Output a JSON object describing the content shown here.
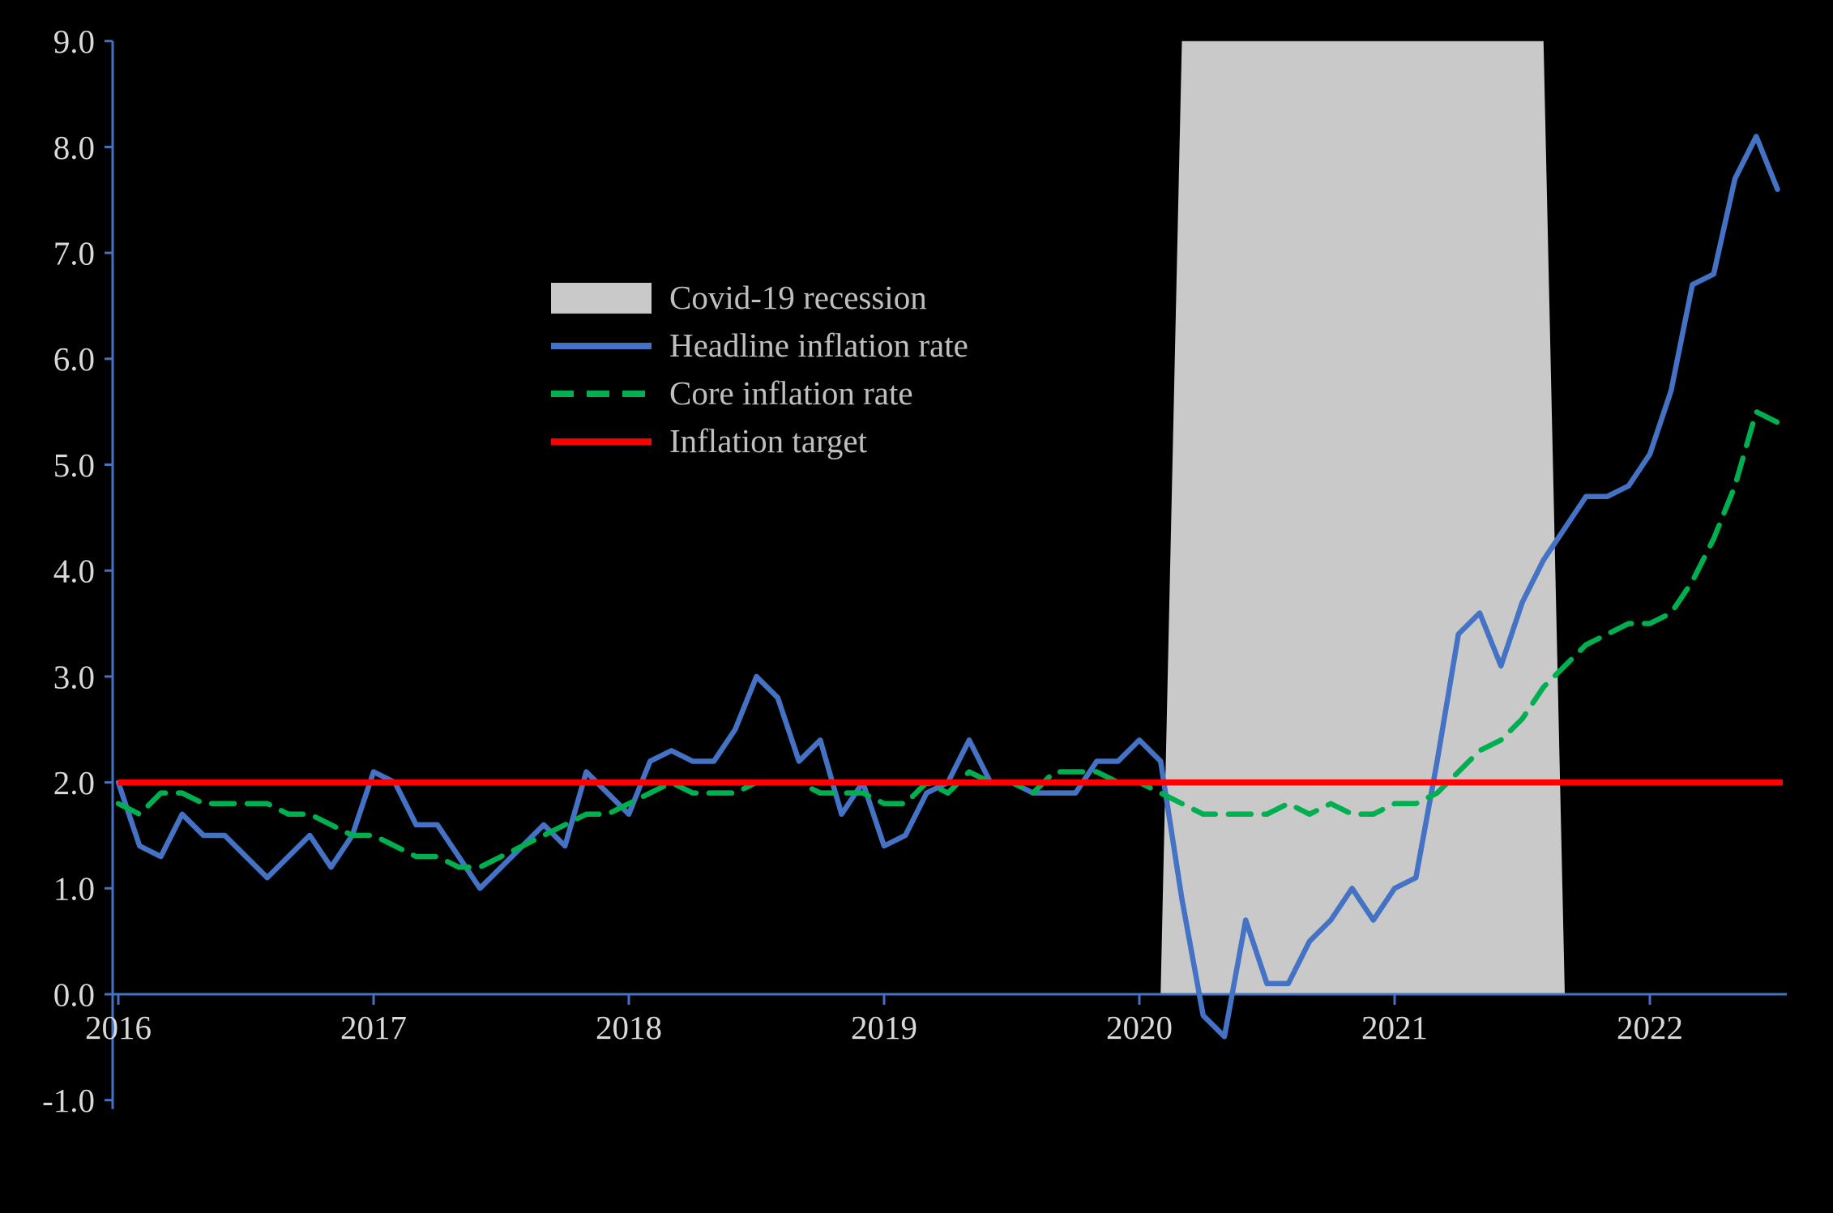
{
  "page": {
    "background": "#000000"
  },
  "chart_data": {
    "type": "line",
    "title": "",
    "xlabel": "",
    "ylabel": "",
    "ylim": [
      -1.0,
      9.0
    ],
    "grid": false,
    "background": "#000000",
    "axis_color": "#4472C4",
    "tick_label_color": "#D9D9D9",
    "legend_text_color": "#BFBFBF",
    "legend_position": "upper-left-inside",
    "ytick_values": [
      9,
      8,
      7,
      6,
      5,
      4,
      3,
      2,
      1,
      0,
      -1
    ],
    "ytick_labels": [
      "9.0",
      "8.0",
      "7.0",
      "6.0",
      "5.0",
      "4.0",
      "3.0",
      "2.0",
      "1.0",
      "0.0",
      "-1.0"
    ],
    "xtick_labels": [
      "2016",
      "2017",
      "2018",
      "2019",
      "2020",
      "2021",
      "2022"
    ],
    "months": [
      "2016-01",
      "2016-02",
      "2016-03",
      "2016-04",
      "2016-05",
      "2016-06",
      "2016-07",
      "2016-08",
      "2016-09",
      "2016-10",
      "2016-11",
      "2016-12",
      "2017-01",
      "2017-02",
      "2017-03",
      "2017-04",
      "2017-05",
      "2017-06",
      "2017-07",
      "2017-08",
      "2017-09",
      "2017-10",
      "2017-11",
      "2017-12",
      "2018-01",
      "2018-02",
      "2018-03",
      "2018-04",
      "2018-05",
      "2018-06",
      "2018-07",
      "2018-08",
      "2018-09",
      "2018-10",
      "2018-11",
      "2018-12",
      "2019-01",
      "2019-02",
      "2019-03",
      "2019-04",
      "2019-05",
      "2019-06",
      "2019-07",
      "2019-08",
      "2019-09",
      "2019-10",
      "2019-11",
      "2019-12",
      "2020-01",
      "2020-02",
      "2020-03",
      "2020-04",
      "2020-05",
      "2020-06",
      "2020-07",
      "2020-08",
      "2020-09",
      "2020-10",
      "2020-11",
      "2020-12",
      "2021-01",
      "2021-02",
      "2021-03",
      "2021-04",
      "2021-05",
      "2021-06",
      "2021-07",
      "2021-08",
      "2021-09",
      "2021-10",
      "2021-11",
      "2021-12",
      "2022-01",
      "2022-02",
      "2022-03",
      "2022-04",
      "2022-05",
      "2022-06",
      "2022-07"
    ],
    "series": [
      {
        "name": "Headline inflation rate",
        "color": "#4472C4",
        "style": "solid",
        "values": [
          2.0,
          1.4,
          1.3,
          1.7,
          1.5,
          1.5,
          1.3,
          1.1,
          1.3,
          1.5,
          1.2,
          1.5,
          2.1,
          2.0,
          1.6,
          1.6,
          1.3,
          1.0,
          1.2,
          1.4,
          1.6,
          1.4,
          2.1,
          1.9,
          1.7,
          2.2,
          2.3,
          2.2,
          2.2,
          2.5,
          3.0,
          2.8,
          2.2,
          2.4,
          1.7,
          2.0,
          1.4,
          1.5,
          1.9,
          2.0,
          2.4,
          2.0,
          2.0,
          1.9,
          1.9,
          1.9,
          2.2,
          2.2,
          2.4,
          2.2,
          0.9,
          -0.2,
          -0.4,
          0.7,
          0.1,
          0.1,
          0.5,
          0.7,
          1.0,
          0.7,
          1.0,
          1.1,
          2.2,
          3.4,
          3.6,
          3.1,
          3.7,
          4.1,
          4.4,
          4.7,
          4.7,
          4.8,
          5.1,
          5.7,
          6.7,
          6.8,
          7.7,
          8.1,
          7.6
        ]
      },
      {
        "name": "Core inflation rate",
        "color": "#00B050",
        "style": "dashed",
        "values": [
          1.8,
          1.7,
          1.9,
          1.9,
          1.8,
          1.8,
          1.8,
          1.8,
          1.7,
          1.7,
          1.6,
          1.5,
          1.5,
          1.4,
          1.3,
          1.3,
          1.2,
          1.2,
          1.3,
          1.4,
          1.5,
          1.6,
          1.7,
          1.7,
          1.8,
          1.9,
          2.0,
          1.9,
          1.9,
          1.9,
          2.0,
          2.0,
          2.0,
          1.9,
          1.9,
          1.9,
          1.8,
          1.8,
          2.0,
          1.9,
          2.1,
          2.0,
          2.0,
          1.9,
          2.1,
          2.1,
          2.1,
          2.0,
          2.0,
          1.9,
          1.8,
          1.7,
          1.7,
          1.7,
          1.7,
          1.8,
          1.7,
          1.8,
          1.7,
          1.7,
          1.8,
          1.8,
          1.9,
          2.1,
          2.3,
          2.4,
          2.6,
          2.9,
          3.1,
          3.3,
          3.4,
          3.5,
          3.5,
          3.6,
          3.9,
          4.3,
          4.8,
          5.5,
          5.4
        ]
      },
      {
        "name": "Inflation target",
        "color": "#FF0000",
        "style": "solid",
        "constant": 2.0
      }
    ],
    "recession_band": {
      "label": "Covid-19 recession",
      "color": "#C9C9C9",
      "start": "2020-03",
      "end": "2021-08",
      "top_value": 9.0,
      "bottom_value": 0.0
    },
    "legend": {
      "entries": [
        {
          "label": "Covid-19 recession",
          "swatch": "area",
          "color": "#C9C9C9"
        },
        {
          "label": "Headline inflation rate",
          "swatch": "line-solid",
          "color": "#4472C4"
        },
        {
          "label": "Core inflation rate",
          "swatch": "line-dashed",
          "color": "#00B050"
        },
        {
          "label": "Inflation target",
          "swatch": "line-solid",
          "color": "#FF0000"
        }
      ]
    }
  }
}
